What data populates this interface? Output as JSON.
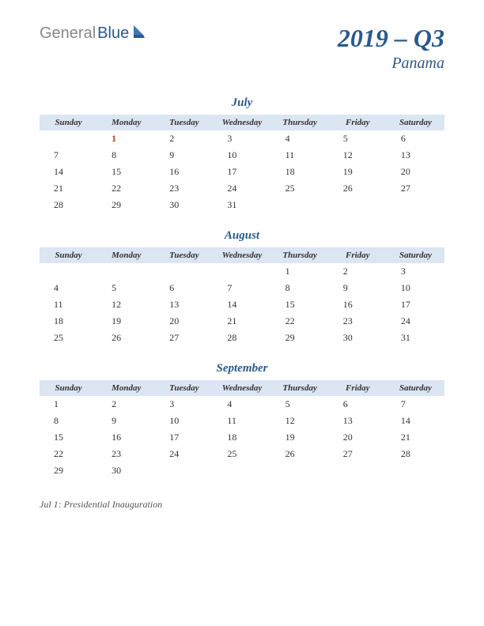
{
  "logo": {
    "text_general": "General",
    "text_blue": "Blue"
  },
  "header": {
    "quarter": "2019 – Q3",
    "country": "Panama"
  },
  "day_headers": [
    "Sunday",
    "Monday",
    "Tuesday",
    "Wednesday",
    "Thursday",
    "Friday",
    "Saturday"
  ],
  "months": [
    {
      "name": "July",
      "weeks": [
        [
          "",
          "1",
          "2",
          "3",
          "4",
          "5",
          "6"
        ],
        [
          "7",
          "8",
          "9",
          "10",
          "11",
          "12",
          "13"
        ],
        [
          "14",
          "15",
          "16",
          "17",
          "18",
          "19",
          "20"
        ],
        [
          "21",
          "22",
          "23",
          "24",
          "25",
          "26",
          "27"
        ],
        [
          "28",
          "29",
          "30",
          "31",
          "",
          "",
          ""
        ]
      ],
      "holidays": {
        "0-1": true
      }
    },
    {
      "name": "August",
      "weeks": [
        [
          "",
          "",
          "",
          "",
          "1",
          "2",
          "3"
        ],
        [
          "4",
          "5",
          "6",
          "7",
          "8",
          "9",
          "10"
        ],
        [
          "11",
          "12",
          "13",
          "14",
          "15",
          "16",
          "17"
        ],
        [
          "18",
          "19",
          "20",
          "21",
          "22",
          "23",
          "24"
        ],
        [
          "25",
          "26",
          "27",
          "28",
          "29",
          "30",
          "31"
        ]
      ],
      "holidays": {}
    },
    {
      "name": "September",
      "weeks": [
        [
          "1",
          "2",
          "3",
          "4",
          "5",
          "6",
          "7"
        ],
        [
          "8",
          "9",
          "10",
          "11",
          "12",
          "13",
          "14"
        ],
        [
          "15",
          "16",
          "17",
          "18",
          "19",
          "20",
          "21"
        ],
        [
          "22",
          "23",
          "24",
          "25",
          "26",
          "27",
          "28"
        ],
        [
          "29",
          "30",
          "",
          "",
          "",
          "",
          ""
        ]
      ],
      "holidays": {}
    }
  ],
  "notes": "Jul 1: Presidential Inauguration",
  "colors": {
    "header_bg": "#dce5f2",
    "title_color": "#2b5a8a",
    "holiday_color": "#c0392b",
    "text_color": "#333333",
    "background": "#ffffff"
  }
}
